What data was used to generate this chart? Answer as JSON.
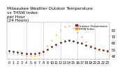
{
  "title": "Milwaukee Weather Outdoor Temperature\nvs THSW Index\nper Hour\n(24 Hours)",
  "bg_color": "#ffffff",
  "hours": [
    0,
    1,
    2,
    3,
    4,
    5,
    6,
    7,
    8,
    9,
    10,
    11,
    12,
    13,
    14,
    15,
    16,
    17,
    18,
    19,
    20,
    21,
    22,
    23
  ],
  "temp": [
    47,
    46,
    45,
    44,
    43,
    43,
    43,
    44,
    46,
    50,
    54,
    57,
    61,
    63,
    64,
    63,
    61,
    59,
    56,
    54,
    52,
    50,
    49,
    48
  ],
  "thsw": [
    44,
    43,
    42,
    41,
    40,
    40,
    40,
    41,
    47,
    55,
    64,
    72,
    80,
    85,
    87,
    83,
    76,
    69,
    62,
    56,
    52,
    49,
    47,
    45
  ],
  "temp_color": "#cc0000",
  "thsw_color": "#ff8800",
  "dot_size": 1.5,
  "xlim": [
    -0.5,
    23.5
  ],
  "ylim": [
    35,
    92
  ],
  "yticks": [
    40,
    50,
    60,
    70,
    80
  ],
  "ytick_labels": [
    "40",
    "50",
    "60",
    "70",
    "80"
  ],
  "xticks": [
    0,
    1,
    2,
    3,
    4,
    5,
    6,
    7,
    8,
    9,
    10,
    11,
    12,
    13,
    14,
    15,
    16,
    17,
    18,
    19,
    20,
    21,
    22,
    23
  ],
  "xtick_labels": [
    "0",
    "1",
    "2",
    "3",
    "4",
    "5",
    "6",
    "7",
    "8",
    "9",
    "10",
    "11",
    "12",
    "13",
    "14",
    "15",
    "16",
    "17",
    "18",
    "19",
    "20",
    "21",
    "22",
    "23"
  ],
  "vgrid_at": [
    4,
    8,
    12,
    16,
    20
  ],
  "grid_color": "#aaaaaa",
  "tick_fontsize": 3.5,
  "title_fontsize": 4.2,
  "legend_labels": [
    "Outdoor Temperature",
    "THSW Index"
  ],
  "legend_colors": [
    "#cc0000",
    "#ff8800"
  ]
}
